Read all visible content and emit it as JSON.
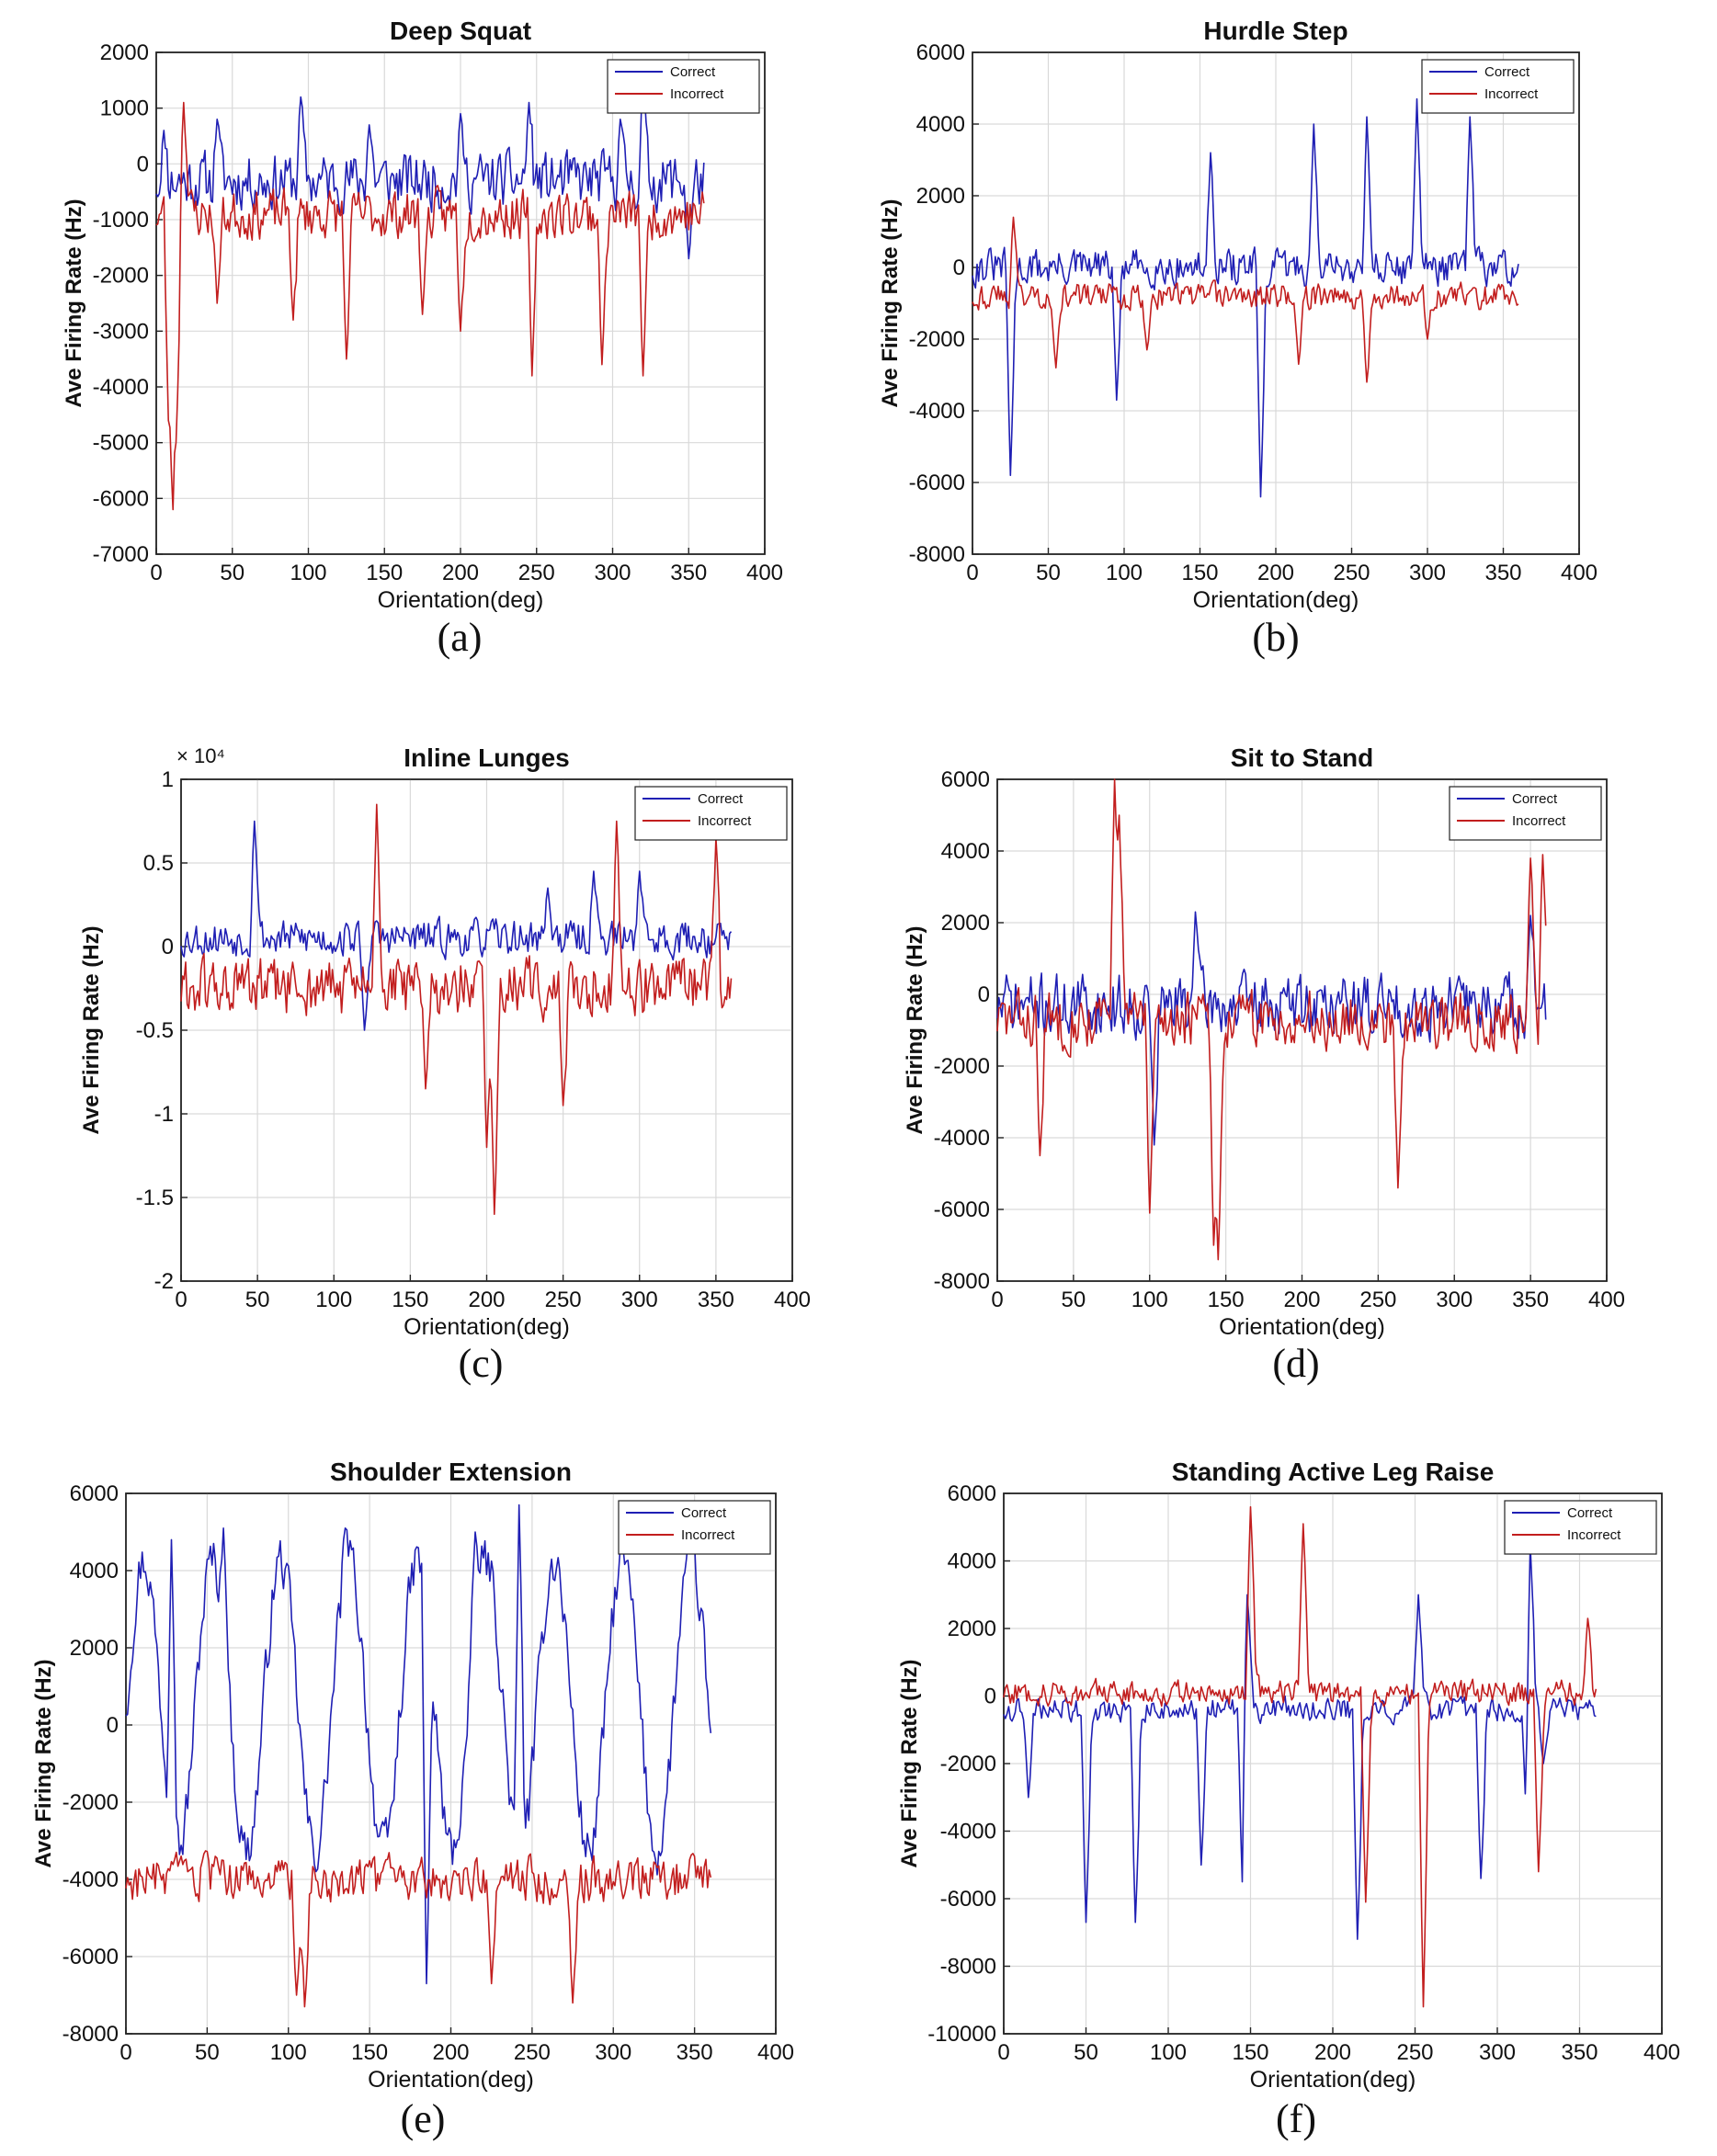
{
  "colors": {
    "correct": "#1f1fb4",
    "incorrect": "#c21e1e"
  },
  "chart_data": [
    {
      "type": "line",
      "title": "Deep Squat",
      "caption": "(a)",
      "xlabel": "Orientation(deg)",
      "ylabel": "Ave Firing Rate (Hz)",
      "xlim": [
        0,
        400
      ],
      "ylim": [
        -7000,
        2000
      ],
      "xticks": [
        0,
        50,
        100,
        150,
        200,
        250,
        300,
        350,
        400
      ],
      "yticks": [
        -7000,
        -6000,
        -5000,
        -4000,
        -3000,
        -2000,
        -1000,
        0,
        1000,
        2000
      ],
      "grid": true,
      "legend_position": "top-right",
      "legend": [
        "Correct",
        "Incorrect"
      ],
      "series": [
        {
          "name": "Correct",
          "color": "#1f1fb4",
          "base": -300,
          "noise": 700,
          "seed": 11,
          "x": [
            0,
            360
          ],
          "spikes": [
            [
              5,
              600
            ],
            [
              40,
              800
            ],
            [
              95,
              1200
            ],
            [
              140,
              700
            ],
            [
              200,
              900
            ],
            [
              245,
              1100
            ],
            [
              305,
              800
            ],
            [
              320,
              1500
            ],
            [
              350,
              -1700
            ]
          ]
        },
        {
          "name": "Incorrect",
          "color": "#c21e1e",
          "base": -900,
          "noise": 600,
          "seed": 23,
          "x": [
            0,
            360
          ],
          "spikes": [
            [
              8,
              -4600
            ],
            [
              11,
              -6800
            ],
            [
              13,
              -5000
            ],
            [
              18,
              1100
            ],
            [
              40,
              -2500
            ],
            [
              90,
              -2800
            ],
            [
              125,
              -3500
            ],
            [
              175,
              -2700
            ],
            [
              200,
              -3000
            ],
            [
              247,
              -3800
            ],
            [
              293,
              -3600
            ],
            [
              320,
              -3800
            ]
          ]
        }
      ]
    },
    {
      "type": "line",
      "title": "Hurdle Step",
      "caption": "(b)",
      "xlabel": "Orientation(deg)",
      "ylabel": "Ave Firing Rate (Hz)",
      "xlim": [
        0,
        400
      ],
      "ylim": [
        -8000,
        6000
      ],
      "xticks": [
        0,
        50,
        100,
        150,
        200,
        250,
        300,
        350,
        400
      ],
      "yticks": [
        -8000,
        -6000,
        -4000,
        -2000,
        0,
        2000,
        4000,
        6000
      ],
      "grid": true,
      "legend_position": "top-right",
      "legend": [
        "Correct",
        "Incorrect"
      ],
      "series": [
        {
          "name": "Correct",
          "color": "#1f1fb4",
          "base": 0,
          "noise": 700,
          "seed": 31,
          "x": [
            0,
            360
          ],
          "spikes": [
            [
              25,
              -5800
            ],
            [
              95,
              -3700
            ],
            [
              157,
              3200
            ],
            [
              190,
              -6400
            ],
            [
              225,
              4000
            ],
            [
              260,
              4200
            ],
            [
              293,
              4700
            ],
            [
              328,
              4200
            ]
          ]
        },
        {
          "name": "Incorrect",
          "color": "#c21e1e",
          "base": -800,
          "noise": 500,
          "seed": 43,
          "x": [
            0,
            360
          ],
          "spikes": [
            [
              27,
              1400
            ],
            [
              55,
              -2800
            ],
            [
              115,
              -2300
            ],
            [
              215,
              -2700
            ],
            [
              260,
              -3200
            ],
            [
              300,
              -2000
            ]
          ]
        }
      ]
    },
    {
      "type": "line",
      "title": "Inline Lunges",
      "caption": "(c)",
      "xlabel": "Orientation(deg)",
      "ylabel": "Ave Firing Rate (Hz)",
      "yscale_note": "× 10⁴",
      "xlim": [
        0,
        400
      ],
      "ylim": [
        -2,
        1
      ],
      "xticks": [
        0,
        50,
        100,
        150,
        200,
        250,
        300,
        350,
        400
      ],
      "yticks": [
        -2,
        -1.5,
        -1,
        -0.5,
        0,
        0.5,
        1
      ],
      "grid": true,
      "legend_position": "top-right",
      "legend": [
        "Correct",
        "Incorrect"
      ],
      "series": [
        {
          "name": "Correct",
          "color": "#1f1fb4",
          "base": 0.05,
          "noise": 0.15,
          "seed": 53,
          "x": [
            0,
            360
          ],
          "spikes": [
            [
              48,
              0.75
            ],
            [
              120,
              -0.5
            ],
            [
              240,
              0.35
            ],
            [
              270,
              0.45
            ],
            [
              300,
              0.45
            ]
          ]
        },
        {
          "name": "Incorrect",
          "color": "#c21e1e",
          "base": -0.25,
          "noise": 0.25,
          "seed": 61,
          "x": [
            0,
            360
          ],
          "spikes": [
            [
              128,
              0.85
            ],
            [
              160,
              -0.85
            ],
            [
              200,
              -1.2
            ],
            [
              205,
              -1.6
            ],
            [
              250,
              -0.95
            ],
            [
              285,
              0.75
            ],
            [
              350,
              0.65
            ],
            [
              355,
              -0.35
            ]
          ]
        }
      ]
    },
    {
      "type": "line",
      "title": "Sit to Stand",
      "caption": "(d)",
      "xlabel": "Orientation(deg)",
      "ylabel": "Ave Firing Rate (Hz)",
      "xlim": [
        0,
        400
      ],
      "ylim": [
        -8000,
        6000
      ],
      "xticks": [
        0,
        50,
        100,
        150,
        200,
        250,
        300,
        350,
        400
      ],
      "yticks": [
        -8000,
        -6000,
        -4000,
        -2000,
        0,
        2000,
        4000,
        6000
      ],
      "grid": true,
      "legend_position": "top-right",
      "legend": [
        "Correct",
        "Incorrect"
      ],
      "series": [
        {
          "name": "Correct",
          "color": "#1f1fb4",
          "base": -300,
          "noise": 1200,
          "seed": 71,
          "x": [
            0,
            360
          ],
          "spikes": [
            [
              103,
              -4200
            ],
            [
              130,
              2300
            ],
            [
              350,
              2200
            ]
          ]
        },
        {
          "name": "Incorrect",
          "color": "#c21e1e",
          "base": -700,
          "noise": 1100,
          "seed": 83,
          "x": [
            0,
            360
          ],
          "spikes": [
            [
              28,
              -4500
            ],
            [
              77,
              6000
            ],
            [
              80,
              5000
            ],
            [
              100,
              -6100
            ],
            [
              142,
              -7000
            ],
            [
              145,
              -7400
            ],
            [
              263,
              -5400
            ],
            [
              350,
              3800
            ],
            [
              358,
              3900
            ]
          ]
        }
      ]
    },
    {
      "type": "line",
      "title": "Shoulder Extension",
      "caption": "(e)",
      "xlabel": "Orientation(deg)",
      "ylabel": "Ave Firing Rate (Hz)",
      "xlim": [
        0,
        400
      ],
      "ylim": [
        -8000,
        6000
      ],
      "xticks": [
        0,
        50,
        100,
        150,
        200,
        250,
        300,
        350,
        400
      ],
      "yticks": [
        -8000,
        -6000,
        -4000,
        -2000,
        0,
        2000,
        4000,
        6000
      ],
      "grid": true,
      "legend_position": "top-right",
      "legend": [
        "Correct",
        "Incorrect"
      ],
      "series": [
        {
          "name": "Correct",
          "color": "#1f1fb4",
          "base": 500,
          "noise": 900,
          "seed": 97,
          "x": [
            0,
            360
          ],
          "wave": 3800,
          "period": 40,
          "spikes": [
            [
              28,
              4800
            ],
            [
              60,
              5100
            ],
            [
              135,
              5100
            ],
            [
              215,
              5000
            ],
            [
              242,
              5700
            ],
            [
              185,
              -6700
            ]
          ]
        },
        {
          "name": "Incorrect",
          "color": "#c21e1e",
          "base": -4000,
          "noise": 800,
          "seed": 103,
          "x": [
            0,
            360
          ],
          "spikes": [
            [
              105,
              -7000
            ],
            [
              110,
              -7300
            ],
            [
              275,
              -7200
            ],
            [
              225,
              -6700
            ]
          ]
        }
      ]
    },
    {
      "type": "line",
      "title": "Standing Active Leg Raise",
      "caption": "(f)",
      "xlabel": "Orientation(deg)",
      "ylabel": "Ave Firing Rate (Hz)",
      "xlim": [
        0,
        400
      ],
      "ylim": [
        -10000,
        6000
      ],
      "xticks": [
        0,
        50,
        100,
        150,
        200,
        250,
        300,
        350,
        400
      ],
      "yticks": [
        -10000,
        -8000,
        -6000,
        -4000,
        -2000,
        0,
        2000,
        4000,
        6000
      ],
      "grid": true,
      "legend_position": "top-right",
      "legend": [
        "Correct",
        "Incorrect"
      ],
      "series": [
        {
          "name": "Correct",
          "color": "#1f1fb4",
          "base": -400,
          "noise": 500,
          "seed": 109,
          "x": [
            0,
            360
          ],
          "spikes": [
            [
              15,
              -3000
            ],
            [
              50,
              -6700
            ],
            [
              80,
              -6700
            ],
            [
              120,
              -5000
            ],
            [
              145,
              -5500
            ],
            [
              148,
              3000
            ],
            [
              215,
              -7200
            ],
            [
              252,
              3000
            ],
            [
              290,
              -5400
            ],
            [
              318,
              -4000
            ],
            [
              320,
              4500
            ],
            [
              328,
              -2000
            ]
          ]
        },
        {
          "name": "Incorrect",
          "color": "#c21e1e",
          "base": 100,
          "noise": 500,
          "seed": 127,
          "x": [
            0,
            360
          ],
          "spikes": [
            [
              150,
              5600
            ],
            [
              182,
              5100
            ],
            [
              220,
              -6100
            ],
            [
              255,
              -9200
            ],
            [
              325,
              -5200
            ],
            [
              355,
              2300
            ]
          ]
        }
      ]
    }
  ]
}
